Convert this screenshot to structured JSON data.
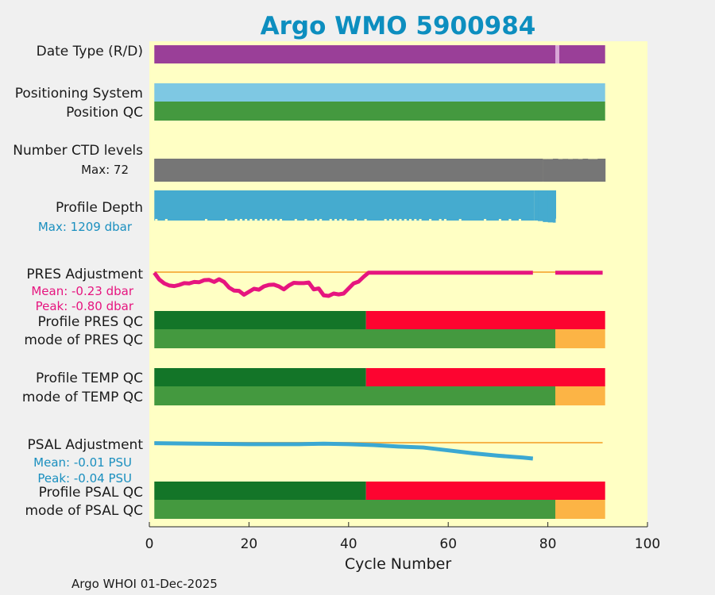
{
  "chart_data": {
    "type": "bar",
    "title": "Argo WMO 5900984",
    "xlabel": "Cycle Number",
    "xlim": [
      0,
      100
    ],
    "xticks": [
      "0",
      "20",
      "40",
      "60",
      "80",
      "100"
    ],
    "footer": "Argo WHOI 01-Dec-2025",
    "rows": {
      "date_type": "Date Type (R/D)",
      "positioning_system": "Positioning System",
      "position_qc": "Position QC",
      "number_ctd_levels": "Number CTD levels",
      "ctd_max": "Max: 72",
      "profile_depth": "Profile Depth",
      "depth_max": "Max: 1209 dbar",
      "pres_adjustment": "PRES Adjustment",
      "pres_mean": "Mean: -0.23 dbar",
      "pres_peak": "Peak: -0.80 dbar",
      "profile_pres_qc": "Profile PRES QC",
      "mode_pres_qc": "mode of PRES QC",
      "profile_temp_qc": "Profile TEMP QC",
      "mode_temp_qc": "mode of TEMP QC",
      "psal_adjustment": "PSAL Adjustment",
      "psal_mean": "Mean: -0.01 PSU",
      "psal_peak": "Peak: -0.04 PSU",
      "profile_psal_qc": "Profile PSAL QC",
      "mode_psal_qc": "mode of PSAL QC"
    },
    "colors": {
      "background": "#ffffc4",
      "figure": "#f0f0f0",
      "date_realtime": "#9a3f98",
      "date_gap": "#d9a6d6",
      "positioning": "#7ec8e3",
      "qc_good": "#44993f",
      "ctd": "#767676",
      "depth": "#45abcf",
      "pres_line": "#e6157f",
      "ref_line": "#f7b54a",
      "qc_dark": "#137528",
      "qc_bad": "#fd0430",
      "qc_orange": "#fcb445",
      "psal_line": "#3ba8d2",
      "title": "#0d8ebf",
      "pres_text": "#e6157f",
      "blue_text": "#1a8fbf"
    },
    "date_type": {
      "start": 1,
      "end": 91.5,
      "gap_start": 81.5,
      "gap_end": 82.3
    },
    "positioning_system": {
      "start": 1,
      "end": 91.5
    },
    "position_qc": {
      "start": 1,
      "end": 91.5
    },
    "ctd_levels": {
      "cycles": [
        1,
        79,
        80,
        81,
        82,
        83,
        84,
        85,
        86,
        87,
        88,
        89,
        90,
        91
      ],
      "values": [
        71,
        71,
        71,
        72,
        71,
        71.5,
        71,
        71.5,
        71,
        72,
        71,
        71,
        72,
        72
      ],
      "max": 72
    },
    "profile_depth": {
      "end_full": 77.3,
      "cycles": [
        77.3,
        78,
        79,
        80,
        81,
        81.5
      ],
      "values": [
        1130,
        1150,
        1185,
        1200,
        1209,
        1060
      ],
      "dips": [
        1,
        3,
        11,
        15,
        17,
        18,
        19,
        20,
        21,
        22,
        23,
        24,
        25,
        26,
        29,
        31,
        33,
        34,
        36,
        37,
        38,
        39,
        41,
        43,
        47,
        48,
        49,
        50,
        51,
        52,
        53,
        54,
        56,
        58,
        59,
        62,
        67,
        70,
        72,
        74
      ],
      "max": 1209,
      "ylim": [
        0,
        1400
      ]
    },
    "pres_adjustment": {
      "cycles": [
        1,
        2,
        3,
        4,
        5,
        6,
        7,
        8,
        9,
        10,
        11,
        12,
        13,
        14,
        15,
        16,
        17,
        18,
        19,
        20,
        21,
        22,
        23,
        24,
        25,
        26,
        27,
        28,
        29,
        30,
        31,
        32,
        33,
        34,
        35,
        36,
        37,
        38,
        39,
        40,
        41,
        42,
        43,
        44,
        50,
        60,
        70,
        77
      ],
      "values": [
        -0.02,
        -0.25,
        -0.38,
        -0.45,
        -0.47,
        -0.43,
        -0.37,
        -0.38,
        -0.33,
        -0.34,
        -0.27,
        -0.26,
        -0.33,
        -0.24,
        -0.33,
        -0.52,
        -0.62,
        -0.63,
        -0.76,
        -0.66,
        -0.56,
        -0.59,
        -0.48,
        -0.43,
        -0.42,
        -0.48,
        -0.58,
        -0.45,
        -0.36,
        -0.37,
        -0.37,
        -0.35,
        -0.58,
        -0.55,
        -0.78,
        -0.8,
        -0.72,
        -0.75,
        -0.72,
        -0.55,
        -0.38,
        -0.32,
        -0.16,
        -0.02,
        -0.02,
        -0.02,
        -0.02,
        -0.02
      ],
      "cycles2": [
        81.5,
        91
      ],
      "values2": [
        -0.02,
        -0.02
      ],
      "ref": 0,
      "ref_range": [
        1,
        91
      ],
      "mean": -0.23,
      "peak": -0.8
    },
    "profile_pres_qc": {
      "good_end": 43.5,
      "bad_end": 91.5
    },
    "mode_pres_qc": {
      "good_end": 81.5,
      "orange_end": 91.5
    },
    "profile_temp_qc": {
      "good_end": 43.5,
      "bad_end": 91.5
    },
    "mode_temp_qc": {
      "good_end": 81.5,
      "orange_end": 91.5
    },
    "psal_adjustment": {
      "cycles": [
        1,
        10,
        20,
        30,
        35,
        40,
        45,
        50,
        55,
        60,
        65,
        70,
        75,
        77
      ],
      "values": [
        -0.001,
        -0.002,
        -0.003,
        -0.003,
        -0.002,
        -0.003,
        -0.005,
        -0.008,
        -0.01,
        -0.016,
        -0.022,
        -0.027,
        -0.031,
        -0.033
      ],
      "ref": 0,
      "ref_range": [
        1,
        91
      ],
      "mean": -0.01,
      "peak": -0.04
    },
    "profile_psal_qc": {
      "good_end": 43.5,
      "bad_end": 91.5
    },
    "mode_psal_qc": {
      "good_end": 81.5,
      "orange_end": 91.5
    }
  }
}
